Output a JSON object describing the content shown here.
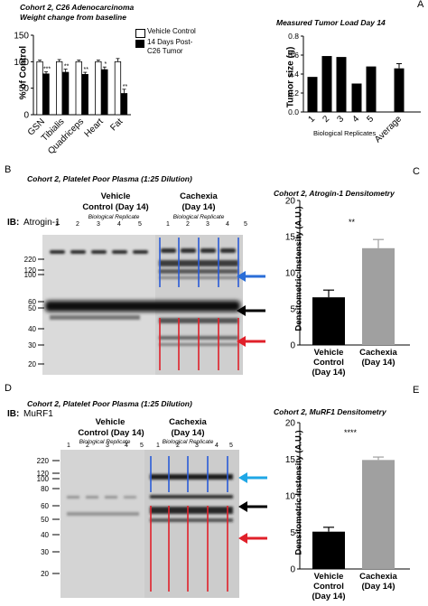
{
  "panels": {
    "A": {
      "letter": "A",
      "title1": "Cohort 2, C26 Adenocarcinoma",
      "title2": "Weight change from baseline",
      "left_chart": {
        "ylabel": "% of Control",
        "legend": [
          "Vehicle Control",
          "14 Days Post-",
          "C26 Tumor"
        ]
      },
      "right_chart": {
        "title": "Measured Tumor Load Day 14",
        "ylabel": "Tumor size (g)",
        "xlabel": "Biological Replicates"
      }
    },
    "B": {
      "letter": "B",
      "title": "Cohort 2, Platelet Poor Plasma (1:25 Dilution)",
      "group1": [
        "Vehicle",
        "Control (Day 14)"
      ],
      "group2": [
        "Cachexia",
        "(Day 14)"
      ],
      "rep_label": "Biological Replicate",
      "lanes": [
        "1",
        "2",
        "3",
        "4",
        "5"
      ],
      "ib": "IB:",
      "ib_target": "Atrogin-1",
      "mw": [
        "220",
        "120",
        "100",
        "60",
        "50",
        "40",
        "30",
        "20"
      ]
    },
    "C": {
      "letter": "C",
      "title": "Cohort 2, Atrogin-1 Densitometry",
      "ylabel": "Densitometric Instensity (A.U.)",
      "sig": "**"
    },
    "D": {
      "letter": "D",
      "title": "Cohort 2, Platelet Poor Plasma (1:25 Dilution)",
      "group1": [
        "Vehicle",
        "Control (Day 14)"
      ],
      "group2": [
        "Cachexia",
        "(Day 14)"
      ],
      "rep_label": "Biological Replicate",
      "lanes": [
        "1",
        "2",
        "3",
        "4",
        "5"
      ],
      "ib": "IB:",
      "ib_target": "MuRF1",
      "mw": [
        "220",
        "120",
        "100",
        "80",
        "60",
        "50",
        "40",
        "30",
        "20"
      ]
    },
    "E": {
      "letter": "E",
      "title": "Cohort 2, MuRF1 Densitometry",
      "ylabel": "Densitometric Instensity (A.U.)",
      "sig": "****"
    }
  },
  "chart_data": [
    {
      "type": "bar",
      "categories": [
        "GSN",
        "Tibialis",
        "Quadriceps",
        "Heart",
        "Fat"
      ],
      "series": [
        {
          "name": "Vehicle Control",
          "values": [
            100,
            100,
            100,
            100,
            100
          ],
          "errors": [
            3,
            4,
            3,
            3,
            6
          ],
          "color": "#ffffff"
        },
        {
          "name": "14 Days Post-C26 Tumor",
          "values": [
            77,
            80,
            76,
            85,
            40
          ],
          "errors": [
            4,
            6,
            4,
            5,
            8
          ],
          "color": "#000000"
        }
      ],
      "significance": [
        "***",
        "**",
        "**",
        "*",
        "**"
      ],
      "ylabel": "% of Control",
      "ylim": [
        0,
        150
      ],
      "yticks": [
        "0",
        "50",
        "100",
        "150"
      ]
    },
    {
      "type": "bar",
      "title": "Measured Tumor Load Day 14",
      "categories": [
        "1",
        "2",
        "3",
        "4",
        "5",
        "Average"
      ],
      "values": [
        0.37,
        0.59,
        0.58,
        0.3,
        0.48,
        0.46
      ],
      "errors": [
        0,
        0,
        0,
        0,
        0,
        0.05
      ],
      "ylabel": "Tumor size (g)",
      "xlabel": "Biological Replicates",
      "ylim": [
        0,
        0.8
      ],
      "yticks": [
        "0.0",
        "0.2",
        "0.4",
        "0.6",
        "0.8"
      ]
    },
    {
      "type": "bar",
      "title": "Cohort 2, Atrogin-1 Densitometry",
      "categories": [
        "Vehicle Control (Day 14)",
        "Cachexia (Day 14)"
      ],
      "values": [
        6.6,
        13.4
      ],
      "errors": [
        1.0,
        1.2
      ],
      "colors": [
        "#000000",
        "#a0a0a0"
      ],
      "ylabel": "Densitometric Instensity (A.U.)",
      "ylim": [
        0,
        20
      ],
      "yticks": [
        "0",
        "5",
        "10",
        "15",
        "20"
      ]
    },
    {
      "type": "bar",
      "title": "Cohort 2, MuRF1 Densitometry",
      "categories": [
        "Vehicle Control (Day 14)",
        "Cachexia (Day 14)"
      ],
      "values": [
        5.1,
        14.9
      ],
      "errors": [
        0.6,
        0.4
      ],
      "colors": [
        "#000000",
        "#a0a0a0"
      ],
      "ylabel": "Densitometric Instensity (A.U.)",
      "ylim": [
        0,
        20
      ],
      "yticks": [
        "0",
        "5",
        "10",
        "15",
        "20"
      ]
    }
  ]
}
